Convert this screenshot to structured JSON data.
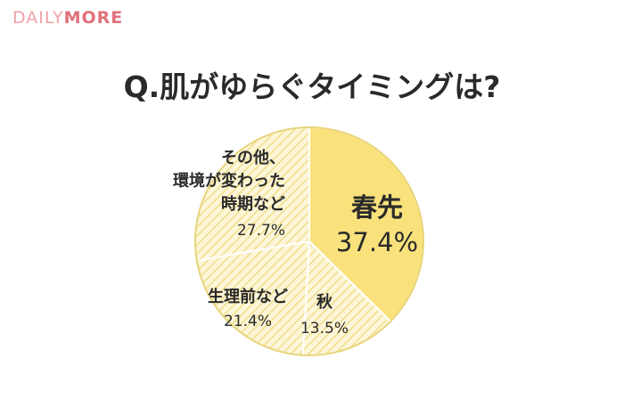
{
  "brand": {
    "logo_part1": "DAILY",
    "logo_part2": "MORE"
  },
  "colors": {
    "highlight": "#f9e27c",
    "pale": "#fdf6d9",
    "stripe": "#eedb7e",
    "border": "#e8d47a",
    "logo_light": "#efa2a8",
    "logo_dark": "#e0707a"
  },
  "chart_data": {
    "type": "pie",
    "title": "Q.肌がゆらぐタイミングは?",
    "slices": [
      {
        "label": "春先",
        "percent_label": "37.4%",
        "value": 37.4,
        "highlight": true
      },
      {
        "label": "秋",
        "percent_label": "13.5%",
        "value": 13.5,
        "highlight": false
      },
      {
        "label": "生理前など",
        "percent_label": "21.4%",
        "value": 21.4,
        "highlight": false
      },
      {
        "label_lines": [
          "その他、",
          "環境が変わった",
          "時期など"
        ],
        "percent_label": "27.7%",
        "value": 27.7,
        "highlight": false
      }
    ]
  }
}
